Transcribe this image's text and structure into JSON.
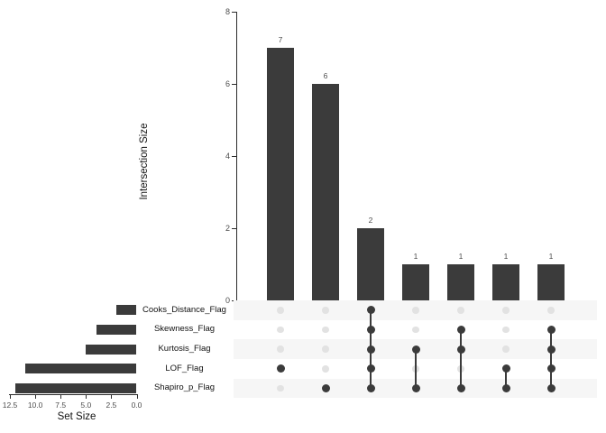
{
  "figure": {
    "background": "#ffffff",
    "bar_color": "#3b3b3b",
    "stripe_color": "#f6f6f6",
    "light_dot_color": "#e2e2e2",
    "dark_dot_color": "#3b3b3b",
    "tick_text_color": "#4d4d4d",
    "title_text_color": "#111111"
  },
  "chart_data": {
    "type": "bar",
    "subtype": "upset",
    "sets": [
      "Cooks_Distance_Flag",
      "Skewness_Flag",
      "Kurtosis_Flag",
      "LOF_Flag",
      "Shapiro_p_Flag"
    ],
    "intersection_chart": {
      "ylabel": "Intersection Size",
      "ylim": [
        0,
        8
      ],
      "yticks": [
        0,
        2,
        4,
        6,
        8
      ],
      "ytick_labels": [
        "0",
        "2",
        "4",
        "6",
        "8"
      ],
      "values": [
        7,
        6,
        2,
        1,
        1,
        1,
        1
      ],
      "value_labels": [
        "7",
        "6",
        "2",
        "1",
        "1",
        "1",
        "1"
      ],
      "memberships": [
        [
          "LOF_Flag"
        ],
        [
          "Shapiro_p_Flag"
        ],
        [
          "Cooks_Distance_Flag",
          "Skewness_Flag",
          "Kurtosis_Flag",
          "LOF_Flag",
          "Shapiro_p_Flag"
        ],
        [
          "Kurtosis_Flag",
          "Shapiro_p_Flag"
        ],
        [
          "Skewness_Flag",
          "Kurtosis_Flag",
          "Shapiro_p_Flag"
        ],
        [
          "LOF_Flag",
          "Shapiro_p_Flag"
        ],
        [
          "Skewness_Flag",
          "Kurtosis_Flag",
          "LOF_Flag",
          "Shapiro_p_Flag"
        ]
      ],
      "grid": false,
      "legend": "none"
    },
    "set_size_chart": {
      "xlabel": "Set Size",
      "xlim": [
        12.5,
        0
      ],
      "xticks": [
        12.5,
        10.0,
        7.5,
        5.0,
        2.5,
        0.0
      ],
      "xtick_labels": [
        "12.5",
        "10.0",
        "7.5",
        "5.0",
        "2.5",
        "0.0"
      ],
      "sizes": [
        2,
        4,
        5,
        11,
        12
      ],
      "grid": false,
      "legend": "none"
    }
  }
}
